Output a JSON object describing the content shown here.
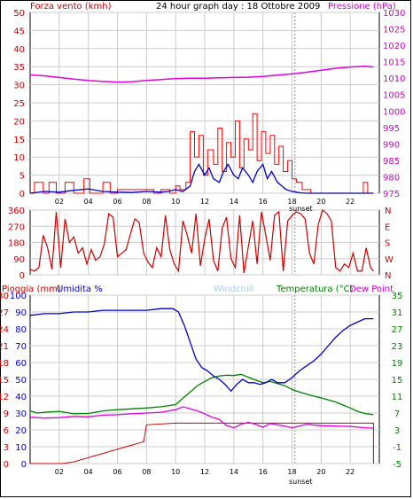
{
  "header": {
    "left_label": "Forza vento (kmh)",
    "title": "24 hour graph day : 18 Ottobre 2009",
    "right_label": "Pressione (hPa)"
  },
  "colors": {
    "wind": "#ff0000",
    "gust": "#ff0000",
    "avg_wind": "#0000cc",
    "pressure": "#e000e0",
    "direction": "#cc0000",
    "humidity": "#0000cc",
    "temperature": "#008000",
    "dewpoint": "#e000e0",
    "rain": "#cc0000",
    "windchill": "#aaccee",
    "grid": "#cccccc"
  },
  "x_axis": {
    "ticks": [
      "02",
      "04",
      "06",
      "08",
      "10",
      "12",
      "14",
      "16",
      "18",
      "20",
      "22"
    ],
    "tick_hours": [
      2,
      4,
      6,
      8,
      10,
      12,
      14,
      16,
      18,
      20,
      22
    ],
    "sunset_label": "sunset",
    "sunset_hour": 18.2,
    "xlim": [
      0,
      24
    ]
  },
  "chart_data": [
    {
      "type": "line",
      "name": "wind",
      "ylabel_left": "Forza vento (kmh)",
      "ylabel_right": "Pressione (hPa)",
      "ylim": [
        0,
        50
      ],
      "y_ticks": [
        0,
        5,
        10,
        15,
        20,
        25,
        30,
        35,
        40,
        45,
        50
      ],
      "y2lim": [
        975,
        1030
      ],
      "y2_ticks": [
        975,
        980,
        985,
        990,
        995,
        1000,
        1005,
        1010,
        1015,
        1020,
        1025,
        1030
      ],
      "series": [
        {
          "name": "gust",
          "axis": "left",
          "step": true,
          "x": [
            0,
            0.3,
            0.3,
            0.9,
            0.9,
            1.3,
            1.3,
            1.8,
            1.8,
            2.4,
            2.4,
            3.0,
            3.0,
            3.7,
            3.7,
            4.1,
            4.1,
            5.0,
            5.0,
            5.5,
            5.5,
            6.0,
            6.0,
            8.5,
            8.5,
            9.0,
            9.0,
            9.6,
            9.6,
            10.0,
            10.0,
            10.3,
            10.3,
            10.7,
            10.7,
            11.0,
            11.0,
            11.3,
            11.3,
            11.6,
            11.6,
            11.9,
            11.9,
            12.2,
            12.2,
            12.6,
            12.6,
            12.9,
            12.9,
            13.2,
            13.2,
            13.5,
            13.5,
            13.8,
            13.8,
            14.1,
            14.1,
            14.4,
            14.4,
            14.7,
            14.7,
            15.0,
            15.0,
            15.3,
            15.3,
            15.6,
            15.6,
            15.9,
            15.9,
            16.2,
            16.2,
            16.5,
            16.5,
            16.8,
            16.8,
            17.1,
            17.1,
            17.4,
            17.4,
            17.7,
            17.7,
            18.0,
            18.0,
            18.3,
            18.3,
            18.7,
            18.7,
            19.3,
            19.3,
            22.9,
            22.9,
            23.2,
            23.2,
            23.6
          ],
          "y": [
            0,
            0,
            3,
            3,
            0,
            0,
            3,
            3,
            0,
            0,
            3,
            3,
            0,
            0,
            4,
            4,
            0,
            0,
            3,
            3,
            0,
            0,
            1,
            1,
            0,
            0,
            1,
            1,
            0,
            0,
            2,
            2,
            1,
            1,
            3,
            3,
            17,
            17,
            10,
            10,
            16,
            16,
            5,
            5,
            12,
            12,
            8,
            8,
            18,
            18,
            6,
            6,
            14,
            14,
            10,
            10,
            20,
            20,
            7,
            7,
            15,
            15,
            12,
            12,
            22,
            22,
            9,
            9,
            17,
            17,
            11,
            11,
            16,
            16,
            8,
            8,
            13,
            13,
            6,
            6,
            9,
            9,
            4,
            4,
            3,
            3,
            1,
            1,
            0,
            0,
            3,
            3,
            0,
            0
          ]
        },
        {
          "name": "avg",
          "axis": "left",
          "step": false,
          "x": [
            0,
            1,
            2,
            3,
            4,
            5,
            6,
            7,
            8,
            9,
            9.5,
            10,
            10.5,
            11,
            11.3,
            11.6,
            12,
            12.3,
            12.6,
            13,
            13.3,
            13.6,
            14,
            14.3,
            14.6,
            15,
            15.3,
            15.6,
            16,
            16.3,
            16.6,
            17,
            17.3,
            17.6,
            18,
            18.3,
            18.6,
            19,
            20,
            21,
            22,
            23,
            23.6
          ],
          "y": [
            0,
            0.5,
            0.3,
            0.8,
            1.2,
            0.5,
            0.3,
            0.2,
            0.5,
            0.3,
            0.5,
            1,
            0.5,
            2,
            6,
            8,
            5,
            7,
            4,
            3,
            6,
            8,
            5,
            4,
            7,
            5,
            3,
            6,
            8,
            4,
            6,
            3,
            2,
            1,
            0.5,
            0.3,
            0.1,
            0,
            0,
            0,
            0,
            0,
            0
          ]
        },
        {
          "name": "pressure",
          "axis": "right",
          "step": false,
          "x": [
            0,
            1,
            2,
            3,
            4,
            5,
            6,
            7,
            8,
            9,
            10,
            11,
            12,
            13,
            14,
            15,
            16,
            17,
            18,
            19,
            20,
            21,
            22,
            23,
            23.6
          ],
          "y": [
            1011.0,
            1010.7,
            1010.2,
            1009.7,
            1009.3,
            1009.0,
            1008.8,
            1008.9,
            1009.3,
            1009.6,
            1009.9,
            1010.0,
            1010.0,
            1010.1,
            1010.2,
            1010.3,
            1010.5,
            1010.9,
            1011.3,
            1011.8,
            1012.4,
            1013.0,
            1013.4,
            1013.6,
            1013.4
          ]
        }
      ]
    },
    {
      "type": "line",
      "name": "wind-direction",
      "ylim": [
        0,
        360
      ],
      "y_ticks": [
        0,
        90,
        180,
        270,
        360
      ],
      "y_tick_labels": [
        "0",
        "90",
        "180",
        "270",
        "360"
      ],
      "right_labels": [
        "N",
        "W",
        "S",
        "E",
        "N"
      ],
      "series": [
        {
          "name": "direction",
          "x": [
            0,
            0.3,
            0.6,
            0.9,
            1.2,
            1.5,
            1.8,
            2.1,
            2.4,
            2.7,
            3.0,
            3.3,
            3.6,
            3.9,
            4.2,
            4.5,
            4.8,
            5.1,
            5.4,
            5.7,
            6.0,
            6.3,
            6.6,
            6.9,
            7.2,
            7.5,
            7.8,
            8.1,
            8.4,
            8.7,
            9.0,
            9.3,
            9.6,
            9.9,
            10.2,
            10.5,
            10.8,
            11.1,
            11.4,
            11.7,
            12.0,
            12.3,
            12.6,
            12.9,
            13.2,
            13.5,
            13.8,
            14.1,
            14.4,
            14.7,
            15.0,
            15.3,
            15.6,
            15.9,
            16.2,
            16.5,
            16.8,
            17.1,
            17.4,
            17.7,
            18.0,
            18.3,
            18.6,
            18.9,
            19.2,
            19.5,
            19.8,
            20.1,
            20.4,
            20.7,
            21.0,
            21.3,
            21.6,
            21.9,
            22.2,
            22.5,
            22.8,
            23.1,
            23.4,
            23.6
          ],
          "y": [
            30,
            20,
            40,
            220,
            150,
            30,
            350,
            40,
            310,
            180,
            210,
            120,
            150,
            60,
            140,
            80,
            100,
            170,
            340,
            320,
            100,
            120,
            140,
            230,
            310,
            290,
            120,
            70,
            40,
            150,
            100,
            330,
            140,
            60,
            20,
            300,
            220,
            120,
            340,
            50,
            200,
            310,
            80,
            20,
            260,
            320,
            90,
            40,
            330,
            10,
            160,
            300,
            60,
            350,
            220,
            80,
            330,
            350,
            20,
            300,
            330,
            350,
            340,
            310,
            120,
            60,
            280,
            360,
            340,
            300,
            40,
            20,
            60,
            40,
            120,
            20,
            20,
            150,
            40,
            20
          ]
        }
      ]
    },
    {
      "type": "line",
      "name": "humidity-temperature-rain",
      "ylabel_left": "Pioggia (mm)",
      "ylabel_left2": "Umidita %",
      "legend": [
        "Windchill",
        "Temperatura (°C)",
        "Dew Point"
      ],
      "ylim": [
        -5,
        35
      ],
      "y_ticks": [
        -5,
        -1,
        3,
        7,
        11,
        15,
        19,
        23,
        27,
        31,
        35
      ],
      "humidity_ticks": [
        0,
        10,
        20,
        30,
        40,
        50,
        60,
        70,
        80,
        90,
        100
      ],
      "rain_ticks": [
        0,
        3,
        6,
        9,
        12,
        15,
        18,
        21,
        24,
        27,
        30
      ],
      "series": [
        {
          "name": "humidity",
          "unit": "%",
          "x": [
            0,
            1,
            2,
            3,
            4,
            5,
            6,
            7,
            8,
            9,
            9.8,
            10.2,
            10.6,
            11.0,
            11.4,
            11.8,
            12.2,
            12.6,
            13.0,
            13.4,
            13.8,
            14.2,
            14.6,
            15.0,
            15.4,
            15.8,
            16.2,
            16.6,
            17.0,
            17.5,
            18,
            18.5,
            19,
            19.5,
            20,
            20.5,
            21,
            21.5,
            22,
            22.5,
            23,
            23.6
          ],
          "y": [
            88,
            89,
            89,
            90,
            90,
            91,
            91,
            91,
            91,
            92,
            92,
            90,
            82,
            72,
            62,
            57,
            55,
            52,
            50,
            47,
            43,
            47,
            50,
            48,
            48,
            47,
            48,
            50,
            48,
            48,
            51,
            55,
            58,
            61,
            65,
            70,
            75,
            79,
            82,
            84,
            86,
            86
          ]
        },
        {
          "name": "temperature",
          "unit": "°C",
          "x": [
            0,
            0.5,
            1,
            2,
            3,
            4,
            5,
            6,
            7,
            8,
            9,
            10,
            10.5,
            11,
            11.5,
            12,
            12.5,
            13,
            13.5,
            14,
            14.5,
            15,
            15.5,
            16,
            16.5,
            17,
            17.5,
            18,
            18.5,
            19,
            19.5,
            20,
            20.5,
            21,
            21.5,
            22,
            22.5,
            23,
            23.6
          ],
          "y": [
            7.5,
            7,
            7.2,
            7.4,
            6.8,
            6.9,
            7.5,
            7.8,
            8,
            8.2,
            8.5,
            9,
            10.5,
            12,
            13.5,
            14.5,
            15.4,
            15.8,
            16,
            15.9,
            16.2,
            15.5,
            14.8,
            14.2,
            14.5,
            14.0,
            13.5,
            12.6,
            12,
            11.5,
            11,
            10.6,
            10.1,
            9.6,
            8.9,
            8.2,
            7.4,
            6.9,
            6.6
          ]
        },
        {
          "name": "dewpoint",
          "unit": "°C",
          "x": [
            0,
            1,
            2,
            3,
            4,
            5,
            6,
            7,
            8,
            9,
            10,
            10.5,
            11,
            11.5,
            12,
            12.5,
            13,
            13.5,
            14,
            14.5,
            15,
            15.5,
            16,
            16.5,
            17,
            17.5,
            18,
            19,
            20,
            21,
            22,
            23,
            23.6
          ],
          "y": [
            6,
            5.8,
            5.9,
            6.2,
            6.1,
            6.5,
            6.6,
            6.8,
            7,
            7.2,
            7.8,
            8.5,
            8,
            7.5,
            6.8,
            6,
            5.5,
            4,
            3.5,
            4.3,
            4.8,
            4.3,
            3.6,
            4.5,
            4.2,
            3.9,
            3.5,
            4.3,
            4,
            3.9,
            3.8,
            3.5,
            3.4
          ]
        },
        {
          "name": "rain",
          "unit": "mm",
          "step": true,
          "x": [
            0,
            2.2,
            3.0,
            3.4,
            3.8,
            4.2,
            4.6,
            5.0,
            5.4,
            5.8,
            6.2,
            6.6,
            7.0,
            7.4,
            7.8,
            8.0,
            10.0,
            23.6,
            23.6
          ],
          "y": [
            0,
            0,
            0.3,
            0.6,
            0.9,
            1.2,
            1.5,
            1.8,
            2.1,
            2.4,
            2.7,
            3.0,
            3.3,
            3.6,
            3.9,
            6.9,
            7.2,
            7.2,
            0
          ]
        }
      ]
    }
  ]
}
